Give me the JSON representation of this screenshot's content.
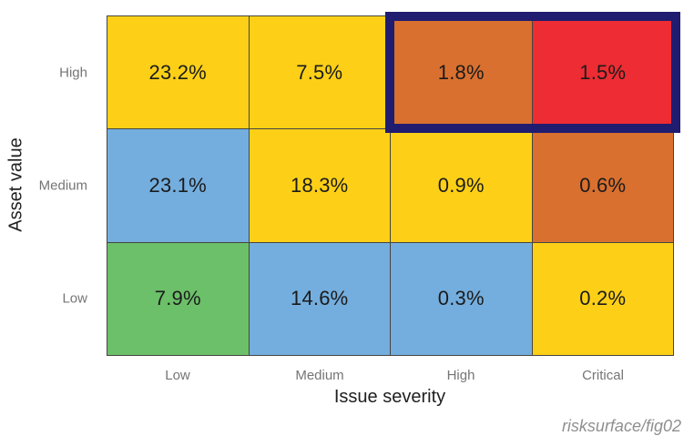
{
  "chart_data": {
    "type": "heatmap",
    "xlabel": "Issue severity",
    "ylabel": "Asset value",
    "x_categories": [
      "Low",
      "Medium",
      "High",
      "Critical"
    ],
    "y_categories": [
      "High",
      "Medium",
      "Low"
    ],
    "unit": "%",
    "values": [
      [
        23.2,
        7.5,
        1.8,
        1.5
      ],
      [
        23.1,
        18.3,
        0.9,
        0.6
      ],
      [
        7.9,
        14.6,
        0.3,
        0.2
      ]
    ],
    "cell_labels": [
      [
        "23.2%",
        "7.5%",
        "1.8%",
        "1.5%"
      ],
      [
        "23.1%",
        "18.3%",
        "0.9%",
        "0.6%"
      ],
      [
        "7.9%",
        "14.6%",
        "0.3%",
        "0.2%"
      ]
    ],
    "cell_colors": [
      [
        "yellow",
        "yellow",
        "orange",
        "red"
      ],
      [
        "blue",
        "yellow",
        "yellow",
        "orange"
      ],
      [
        "green",
        "blue",
        "blue",
        "yellow"
      ]
    ],
    "palette": {
      "yellow": "#fdd017",
      "blue": "#74aede",
      "green": "#6cc069",
      "orange": "#d9702f",
      "red": "#ed2c33"
    },
    "grid_line_color": "#454540",
    "legend": false,
    "highlight": {
      "color": "#201c70",
      "cells": "High asset value x High and Critical severity"
    },
    "attribution": "risksurface/fig02"
  }
}
